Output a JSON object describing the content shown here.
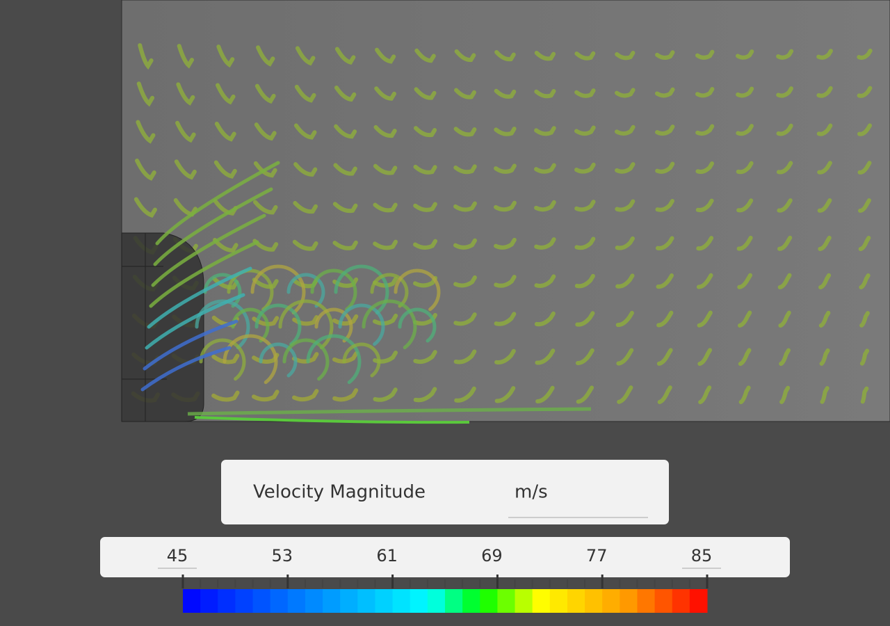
{
  "legend": {
    "title": "Velocity Magnitude",
    "unit": "m/s",
    "ticks": [
      45,
      53,
      61,
      69,
      77,
      85
    ]
  }
}
